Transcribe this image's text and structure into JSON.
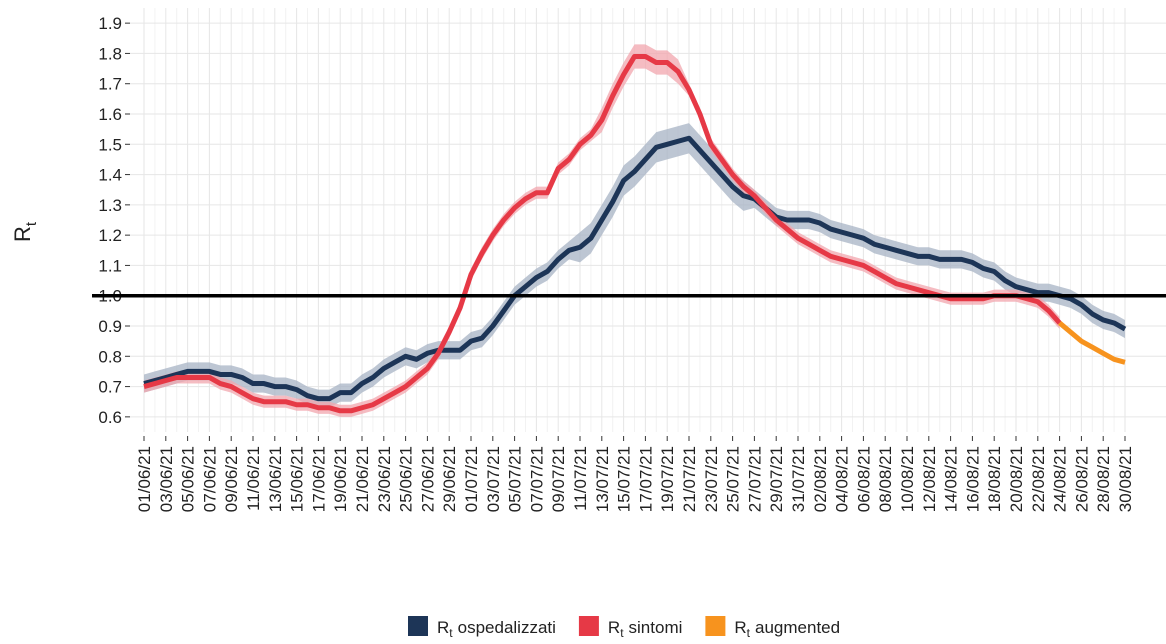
{
  "chart_data": {
    "type": "line",
    "symbol": "R",
    "symbol_subscript": "t",
    "categories": [
      "01/06/21",
      null,
      "03/06/21",
      null,
      "05/06/21",
      null,
      "07/06/21",
      null,
      "09/06/21",
      null,
      "11/06/21",
      null,
      "13/06/21",
      null,
      "15/06/21",
      null,
      "17/06/21",
      null,
      "19/06/21",
      null,
      "21/06/21",
      null,
      "23/06/21",
      null,
      "25/06/21",
      null,
      "27/06/21",
      null,
      "29/06/21",
      null,
      "01/07/21",
      null,
      "03/07/21",
      null,
      "05/07/21",
      null,
      "07/07/21",
      null,
      "09/07/21",
      null,
      "11/07/21",
      null,
      "13/07/21",
      null,
      "15/07/21",
      null,
      "17/07/21",
      null,
      "19/07/21",
      null,
      "21/07/21",
      null,
      "23/07/21",
      null,
      "25/07/21",
      null,
      "27/07/21",
      null,
      "29/07/21",
      null,
      "31/07/21",
      null,
      "02/08/21",
      null,
      "04/08/21",
      null,
      "06/08/21",
      null,
      "08/08/21",
      null,
      "10/08/21",
      null,
      "12/08/21",
      null,
      "14/08/21",
      null,
      "16/08/21",
      null,
      "18/08/21",
      null,
      "20/08/21",
      null,
      "22/08/21",
      null,
      "24/08/21",
      null,
      "26/08/21",
      null,
      "28/08/21",
      null,
      "30/08/21"
    ],
    "series": [
      {
        "name": "ospedalizzati",
        "color": "#1d3557",
        "band_color": "#a7b3c4",
        "values": [
          0.71,
          0.72,
          0.73,
          0.74,
          0.75,
          0.75,
          0.75,
          0.74,
          0.74,
          0.73,
          0.71,
          0.71,
          0.7,
          0.7,
          0.69,
          0.67,
          0.66,
          0.66,
          0.68,
          0.68,
          0.71,
          0.73,
          0.76,
          0.78,
          0.8,
          0.79,
          0.81,
          0.82,
          0.82,
          0.82,
          0.85,
          0.86,
          0.9,
          0.95,
          1.0,
          1.03,
          1.06,
          1.08,
          1.12,
          1.15,
          1.16,
          1.19,
          1.25,
          1.31,
          1.38,
          1.41,
          1.45,
          1.49,
          1.5,
          1.51,
          1.52,
          1.48,
          1.44,
          1.4,
          1.36,
          1.33,
          1.32,
          1.29,
          1.26,
          1.25,
          1.25,
          1.25,
          1.24,
          1.22,
          1.21,
          1.2,
          1.19,
          1.17,
          1.16,
          1.15,
          1.14,
          1.13,
          1.13,
          1.12,
          1.12,
          1.12,
          1.11,
          1.09,
          1.08,
          1.05,
          1.03,
          1.02,
          1.01,
          1.01,
          1.0,
          0.99,
          0.97,
          0.94,
          0.92,
          0.91,
          0.89
        ],
        "lower": [
          0.68,
          0.69,
          0.7,
          0.71,
          0.72,
          0.72,
          0.72,
          0.71,
          0.71,
          0.7,
          0.68,
          0.68,
          0.67,
          0.67,
          0.66,
          0.64,
          0.63,
          0.63,
          0.65,
          0.65,
          0.68,
          0.7,
          0.73,
          0.75,
          0.77,
          0.76,
          0.78,
          0.79,
          0.79,
          0.79,
          0.82,
          0.83,
          0.87,
          0.92,
          0.97,
          1.0,
          1.03,
          1.05,
          1.09,
          1.12,
          1.11,
          1.14,
          1.2,
          1.26,
          1.33,
          1.36,
          1.4,
          1.44,
          1.45,
          1.46,
          1.47,
          1.43,
          1.39,
          1.35,
          1.31,
          1.28,
          1.29,
          1.26,
          1.23,
          1.22,
          1.22,
          1.22,
          1.21,
          1.19,
          1.18,
          1.17,
          1.16,
          1.14,
          1.13,
          1.12,
          1.11,
          1.1,
          1.1,
          1.09,
          1.09,
          1.09,
          1.08,
          1.06,
          1.05,
          1.02,
          1.0,
          0.99,
          0.98,
          0.98,
          0.97,
          0.96,
          0.94,
          0.91,
          0.89,
          0.88,
          0.86
        ],
        "upper": [
          0.74,
          0.75,
          0.76,
          0.77,
          0.78,
          0.78,
          0.78,
          0.77,
          0.77,
          0.76,
          0.74,
          0.74,
          0.73,
          0.73,
          0.72,
          0.7,
          0.69,
          0.69,
          0.71,
          0.71,
          0.74,
          0.76,
          0.79,
          0.81,
          0.83,
          0.82,
          0.84,
          0.85,
          0.85,
          0.85,
          0.88,
          0.89,
          0.93,
          0.98,
          1.03,
          1.06,
          1.09,
          1.11,
          1.15,
          1.18,
          1.21,
          1.24,
          1.3,
          1.36,
          1.43,
          1.46,
          1.5,
          1.54,
          1.55,
          1.56,
          1.57,
          1.53,
          1.49,
          1.45,
          1.41,
          1.38,
          1.35,
          1.32,
          1.29,
          1.28,
          1.28,
          1.28,
          1.27,
          1.25,
          1.24,
          1.23,
          1.22,
          1.2,
          1.19,
          1.18,
          1.17,
          1.16,
          1.16,
          1.15,
          1.15,
          1.15,
          1.14,
          1.12,
          1.11,
          1.08,
          1.06,
          1.05,
          1.04,
          1.04,
          1.03,
          1.02,
          1.0,
          0.97,
          0.95,
          0.94,
          0.92
        ]
      },
      {
        "name": "sintomi",
        "color": "#e63946",
        "band_color": "#f2a5ad",
        "values": [
          0.7,
          0.71,
          0.72,
          0.73,
          0.73,
          0.73,
          0.73,
          0.71,
          0.7,
          0.68,
          0.66,
          0.65,
          0.65,
          0.65,
          0.64,
          0.64,
          0.63,
          0.63,
          0.62,
          0.62,
          0.63,
          0.64,
          0.66,
          0.68,
          0.7,
          0.73,
          0.76,
          0.81,
          0.88,
          0.96,
          1.07,
          1.14,
          1.2,
          1.25,
          1.29,
          1.32,
          1.34,
          1.34,
          1.42,
          1.45,
          1.5,
          1.53,
          1.58,
          1.66,
          1.73,
          1.79,
          1.79,
          1.77,
          1.77,
          1.74,
          1.68,
          1.6,
          1.5,
          1.45,
          1.4,
          1.36,
          1.33,
          1.29,
          1.25,
          1.22,
          1.19,
          1.17,
          1.15,
          1.13,
          1.12,
          1.11,
          1.1,
          1.08,
          1.06,
          1.04,
          1.03,
          1.02,
          1.01,
          1.0,
          0.99,
          0.99,
          0.99,
          0.99,
          1.0,
          1.0,
          1.0,
          0.99,
          0.98,
          0.95,
          0.91,
          null,
          null,
          null,
          null,
          null,
          null
        ],
        "lower": [
          0.68,
          0.69,
          0.7,
          0.71,
          0.71,
          0.71,
          0.71,
          0.69,
          0.68,
          0.66,
          0.64,
          0.63,
          0.63,
          0.63,
          0.62,
          0.62,
          0.61,
          0.61,
          0.6,
          0.6,
          0.61,
          0.62,
          0.64,
          0.66,
          0.68,
          0.71,
          0.74,
          0.79,
          0.86,
          0.94,
          1.05,
          1.12,
          1.18,
          1.23,
          1.27,
          1.3,
          1.32,
          1.32,
          1.4,
          1.43,
          1.48,
          1.51,
          1.54,
          1.62,
          1.69,
          1.75,
          1.75,
          1.73,
          1.73,
          1.7,
          1.66,
          1.58,
          1.48,
          1.43,
          1.38,
          1.34,
          1.31,
          1.27,
          1.23,
          1.2,
          1.17,
          1.15,
          1.13,
          1.11,
          1.1,
          1.09,
          1.08,
          1.06,
          1.04,
          1.02,
          1.01,
          1.0,
          0.99,
          0.98,
          0.97,
          0.97,
          0.97,
          0.97,
          0.98,
          0.98,
          0.98,
          0.97,
          0.96,
          0.93,
          0.89,
          null,
          null,
          null,
          null,
          null,
          null
        ],
        "upper": [
          0.72,
          0.73,
          0.74,
          0.75,
          0.75,
          0.75,
          0.75,
          0.73,
          0.72,
          0.7,
          0.68,
          0.67,
          0.67,
          0.67,
          0.66,
          0.66,
          0.65,
          0.65,
          0.64,
          0.64,
          0.65,
          0.66,
          0.68,
          0.7,
          0.72,
          0.75,
          0.78,
          0.83,
          0.9,
          0.98,
          1.09,
          1.16,
          1.22,
          1.27,
          1.31,
          1.34,
          1.36,
          1.36,
          1.44,
          1.47,
          1.52,
          1.55,
          1.62,
          1.7,
          1.77,
          1.83,
          1.83,
          1.81,
          1.81,
          1.78,
          1.7,
          1.62,
          1.52,
          1.47,
          1.42,
          1.38,
          1.35,
          1.31,
          1.27,
          1.24,
          1.21,
          1.19,
          1.17,
          1.15,
          1.14,
          1.13,
          1.12,
          1.1,
          1.08,
          1.06,
          1.05,
          1.04,
          1.03,
          1.02,
          1.01,
          1.01,
          1.01,
          1.01,
          1.02,
          1.02,
          1.02,
          1.01,
          1.0,
          0.97,
          0.93,
          null,
          null,
          null,
          null,
          null,
          null
        ]
      },
      {
        "name": "augmented",
        "color": "#f7931e",
        "values": [
          null,
          null,
          null,
          null,
          null,
          null,
          null,
          null,
          null,
          null,
          null,
          null,
          null,
          null,
          null,
          null,
          null,
          null,
          null,
          null,
          null,
          null,
          null,
          null,
          null,
          null,
          null,
          null,
          null,
          null,
          null,
          null,
          null,
          null,
          null,
          null,
          null,
          null,
          null,
          null,
          null,
          null,
          null,
          null,
          null,
          null,
          null,
          null,
          null,
          null,
          null,
          null,
          null,
          null,
          null,
          null,
          null,
          null,
          null,
          null,
          null,
          null,
          null,
          null,
          null,
          null,
          null,
          null,
          null,
          null,
          null,
          null,
          null,
          null,
          null,
          null,
          null,
          null,
          null,
          null,
          null,
          null,
          null,
          null,
          0.91,
          0.88,
          0.85,
          0.83,
          0.81,
          0.79,
          0.78
        ]
      }
    ],
    "ylim": [
      0.55,
      1.95
    ],
    "yticks": [
      0.6,
      0.7,
      0.8,
      0.9,
      {
        "value": 1,
        "label": "1.0"
      },
      1.1,
      1.2,
      1.3,
      1.4,
      1.5,
      1.6,
      1.7,
      1.8,
      1.9
    ],
    "reference_line": 1,
    "grid": true,
    "legend": "bottom"
  }
}
